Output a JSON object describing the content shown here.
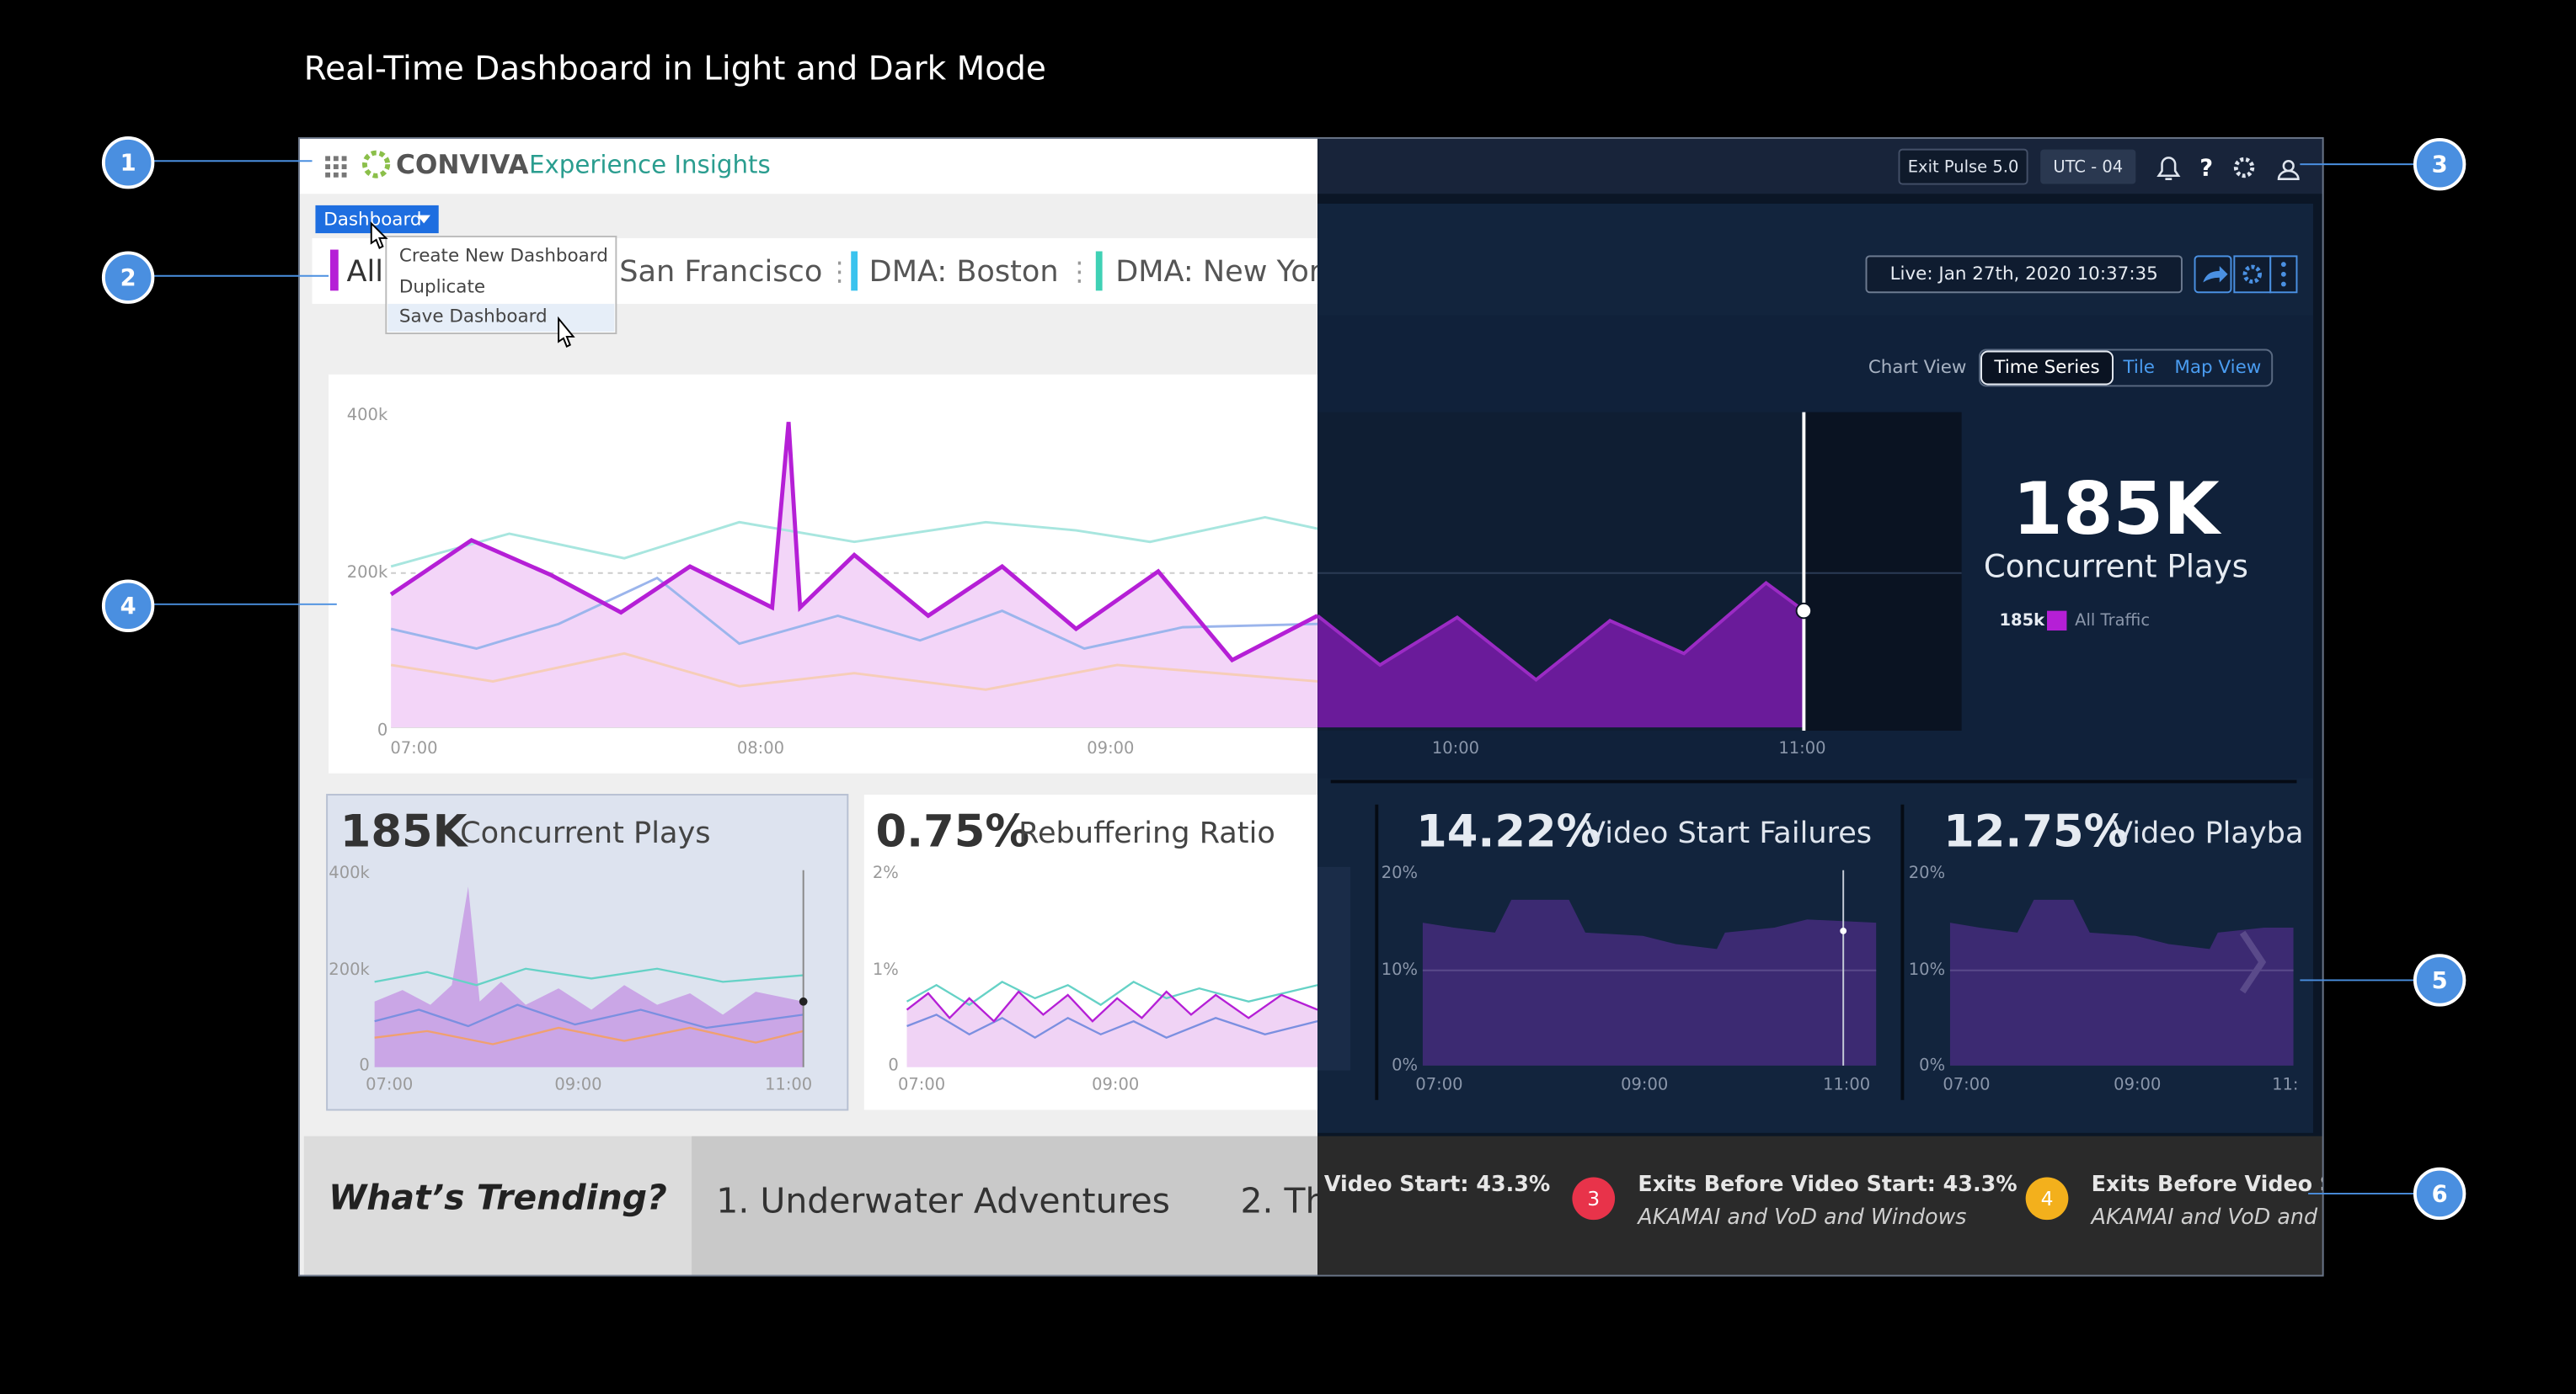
{
  "title": "Real-Time Dashboard in Light and Dark Mode",
  "callouts": [
    "1",
    "2",
    "3",
    "4",
    "5",
    "6"
  ],
  "header": {
    "brand": "CONVIVA",
    "product": "Experience Insights",
    "exit_pulse": "Exit Pulse 5.0",
    "timezone": "UTC - 04",
    "help": "?"
  },
  "dashboard_menu": {
    "button": "Dashboard",
    "items": [
      "Create New Dashboard",
      "Duplicate",
      "Save Dashboard"
    ]
  },
  "tabs": [
    "All",
    "San Francisco",
    "DMA: Boston",
    "DMA: New Yor"
  ],
  "live": "Live:  Jan 27th, 2020 10:37:35",
  "chart_view": {
    "label": "Chart View",
    "options": [
      "Time Series",
      "Tile",
      "Map View"
    ]
  },
  "main_chart": {
    "yticks": [
      "400k",
      "200k",
      "0"
    ],
    "xticks": [
      "07:00",
      "08:00",
      "09:00",
      "10:00",
      "11:00"
    ],
    "kpi": "185K",
    "kpi_label": "Concurrent Plays",
    "legend_value": "185k",
    "legend_name": "All Traffic"
  },
  "tiles": [
    {
      "value": "185K",
      "label": "Concurrent Plays",
      "yticks": [
        "400k",
        "200k",
        "0"
      ],
      "xticks": [
        "07:00",
        "09:00",
        "11:00"
      ]
    },
    {
      "value": "0.75%",
      "label": "Rebuffering Ratio",
      "yticks": [
        "2%",
        "1%",
        "0"
      ],
      "xticks": [
        "07:00",
        "09:00"
      ]
    },
    {
      "value": "14.22%",
      "label": "Video Start Failures",
      "yticks": [
        "20%",
        "10%",
        "0%"
      ],
      "xticks": [
        "07:00",
        "09:00",
        "11:00"
      ]
    },
    {
      "value": "12.75%",
      "label": "Video Playba",
      "yticks": [
        "20%",
        "10%",
        "0%"
      ],
      "xticks": [
        "07:00",
        "09:00",
        "11:"
      ]
    }
  ],
  "trending": {
    "heading": "What’s Trending?",
    "items": [
      "1. Underwater Adventures",
      "2. Th"
    ],
    "alerts": [
      {
        "title": "Video Start: 43.3%"
      },
      {
        "rank": "3",
        "title": "Exits Before Video Start: 43.3%",
        "detail": "AKAMAI and VoD and Windows"
      },
      {
        "rank": "4",
        "title": "Exits Before Video St",
        "detail": "AKAMAI and VoD and"
      }
    ]
  }
}
